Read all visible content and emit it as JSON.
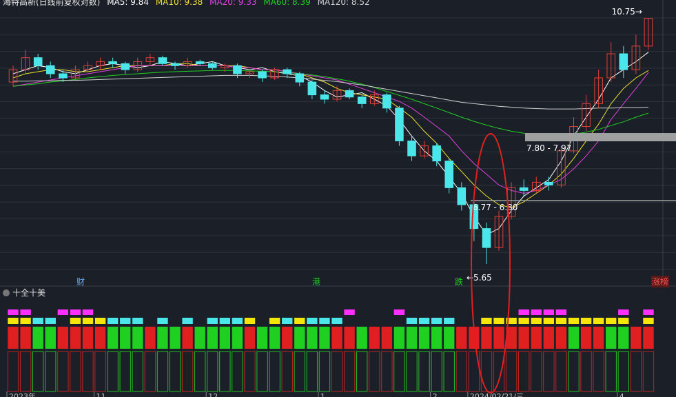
{
  "header": {
    "title": "海特高新(日线前复权对数)",
    "ma5": "MA5: 9.84",
    "ma10": "MA10: 9.38",
    "ma20": "MA20: 9.33",
    "ma60": "MA60: 8.39",
    "ma120": "MA120: 8.52"
  },
  "sub_panel": {
    "title": "十全十美"
  },
  "markers": {
    "cai": "财",
    "gang": "港",
    "die": "跌",
    "zhang": "涨榜"
  },
  "colors": {
    "background": "#1b2028",
    "up": "#e0403a",
    "down": "#4be6ea",
    "ma5": "#ffffff",
    "ma10": "#f0e030",
    "ma20": "#e040e0",
    "ma60": "#20d020",
    "ma120": "#d0d0d0",
    "annotation_ellipse": "#e02020"
  },
  "chart_data": {
    "type": "candlestick",
    "scale": "log",
    "ylim": [
      5.5,
      11.0
    ],
    "x_tick_labels": [
      "2023年",
      "11",
      "12",
      "1",
      "2",
      "2024/02/21/三",
      "4"
    ],
    "annotations": {
      "high": "10.75",
      "low": "5.65",
      "zone_upper": "7.80 - 7.97",
      "zone_lower": "6.77 - 6.80"
    },
    "series": [
      {
        "name": "MA5",
        "values": [
          9.3,
          9.4,
          9.5,
          9.45,
          9.35,
          9.3,
          9.4,
          9.5,
          9.55,
          9.5,
          9.45,
          9.5,
          9.6,
          9.55,
          9.5,
          9.55,
          9.6,
          9.5,
          9.45,
          9.4,
          9.45,
          9.35,
          9.3,
          9.25,
          9.1,
          8.9,
          8.75,
          8.8,
          8.85,
          8.7,
          8.55,
          8.25,
          7.9,
          7.6,
          7.4,
          7.1,
          6.8,
          6.4,
          6.1,
          6.2,
          6.5,
          6.75,
          6.9,
          7.05,
          7.4,
          7.9,
          8.3,
          8.7,
          9.2,
          9.4,
          9.6,
          9.84
        ]
      },
      {
        "name": "MA10",
        "values": [
          9.2,
          9.3,
          9.35,
          9.4,
          9.4,
          9.35,
          9.35,
          9.4,
          9.45,
          9.5,
          9.5,
          9.5,
          9.5,
          9.55,
          9.55,
          9.5,
          9.5,
          9.5,
          9.5,
          9.45,
          9.4,
          9.4,
          9.35,
          9.3,
          9.2,
          9.1,
          8.95,
          8.85,
          8.8,
          8.75,
          8.7,
          8.5,
          8.3,
          8.0,
          7.75,
          7.45,
          7.2,
          6.95,
          6.75,
          6.6,
          6.55,
          6.65,
          6.8,
          6.95,
          7.15,
          7.45,
          7.8,
          8.15,
          8.6,
          8.95,
          9.2,
          9.38
        ]
      },
      {
        "name": "MA20",
        "values": [
          9.0,
          9.05,
          9.1,
          9.15,
          9.2,
          9.25,
          9.3,
          9.35,
          9.4,
          9.45,
          9.5,
          9.5,
          9.5,
          9.5,
          9.5,
          9.5,
          9.5,
          9.5,
          9.45,
          9.45,
          9.4,
          9.4,
          9.35,
          9.3,
          9.25,
          9.2,
          9.15,
          9.05,
          8.95,
          8.85,
          8.75,
          8.65,
          8.5,
          8.3,
          8.1,
          7.9,
          7.6,
          7.35,
          7.15,
          6.95,
          6.85,
          6.8,
          6.85,
          6.95,
          7.05,
          7.25,
          7.5,
          7.8,
          8.25,
          8.6,
          8.95,
          9.33
        ]
      },
      {
        "name": "MA60",
        "values": [
          9.0,
          9.03,
          9.06,
          9.1,
          9.13,
          9.16,
          9.2,
          9.23,
          9.26,
          9.28,
          9.3,
          9.32,
          9.34,
          9.35,
          9.36,
          9.37,
          9.38,
          9.38,
          9.38,
          9.37,
          9.36,
          9.35,
          9.33,
          9.3,
          9.27,
          9.23,
          9.18,
          9.12,
          9.05,
          8.97,
          8.88,
          8.79,
          8.7,
          8.6,
          8.5,
          8.4,
          8.3,
          8.21,
          8.13,
          8.06,
          8.0,
          7.96,
          7.93,
          7.92,
          7.92,
          7.94,
          7.98,
          8.04,
          8.12,
          8.2,
          8.3,
          8.39
        ]
      },
      {
        "name": "MA120",
        "values": [
          9.12,
          9.12,
          9.13,
          9.13,
          9.14,
          9.14,
          9.15,
          9.16,
          9.17,
          9.18,
          9.19,
          9.2,
          9.21,
          9.22,
          9.23,
          9.24,
          9.25,
          9.26,
          9.26,
          9.26,
          9.25,
          9.24,
          9.22,
          9.2,
          9.17,
          9.14,
          9.11,
          9.07,
          9.03,
          8.98,
          8.93,
          8.88,
          8.83,
          8.78,
          8.73,
          8.68,
          8.63,
          8.6,
          8.57,
          8.54,
          8.52,
          8.5,
          8.49,
          8.48,
          8.48,
          8.48,
          8.49,
          8.5,
          8.5,
          8.51,
          8.51,
          8.52
        ]
      }
    ],
    "candles": [
      [
        9.1,
        9.4,
        9.0,
        9.5
      ],
      [
        9.4,
        9.7,
        9.3,
        9.9
      ],
      [
        9.7,
        9.5,
        9.4,
        9.8
      ],
      [
        9.5,
        9.3,
        9.2,
        9.6
      ],
      [
        9.3,
        9.2,
        9.1,
        9.4
      ],
      [
        9.2,
        9.4,
        9.15,
        9.5
      ],
      [
        9.4,
        9.5,
        9.35,
        9.6
      ],
      [
        9.5,
        9.6,
        9.4,
        9.7
      ],
      [
        9.6,
        9.55,
        9.45,
        9.7
      ],
      [
        9.55,
        9.4,
        9.3,
        9.6
      ],
      [
        9.4,
        9.6,
        9.35,
        9.7
      ],
      [
        9.6,
        9.7,
        9.5,
        9.8
      ],
      [
        9.7,
        9.55,
        9.5,
        9.75
      ],
      [
        9.55,
        9.5,
        9.4,
        9.6
      ],
      [
        9.5,
        9.6,
        9.45,
        9.7
      ],
      [
        9.6,
        9.55,
        9.5,
        9.65
      ],
      [
        9.55,
        9.45,
        9.4,
        9.6
      ],
      [
        9.45,
        9.5,
        9.35,
        9.55
      ],
      [
        9.5,
        9.3,
        9.2,
        9.55
      ],
      [
        9.3,
        9.35,
        9.2,
        9.4
      ],
      [
        9.35,
        9.2,
        9.1,
        9.4
      ],
      [
        9.2,
        9.4,
        9.15,
        9.45
      ],
      [
        9.4,
        9.3,
        9.2,
        9.45
      ],
      [
        9.3,
        9.1,
        9.0,
        9.35
      ],
      [
        9.1,
        8.8,
        8.7,
        9.15
      ],
      [
        8.8,
        8.7,
        8.6,
        8.9
      ],
      [
        8.7,
        8.9,
        8.65,
        9.0
      ],
      [
        8.9,
        8.75,
        8.7,
        8.95
      ],
      [
        8.75,
        8.6,
        8.5,
        8.8
      ],
      [
        8.6,
        8.8,
        8.55,
        8.9
      ],
      [
        8.8,
        8.5,
        8.4,
        8.85
      ],
      [
        8.5,
        7.8,
        7.7,
        8.55
      ],
      [
        7.8,
        7.5,
        7.4,
        7.9
      ],
      [
        7.5,
        7.7,
        7.45,
        7.8
      ],
      [
        7.7,
        7.4,
        7.3,
        7.75
      ],
      [
        7.4,
        6.9,
        6.8,
        7.45
      ],
      [
        6.9,
        6.6,
        6.5,
        7.0
      ],
      [
        6.6,
        6.2,
        6.0,
        6.7
      ],
      [
        6.2,
        5.9,
        5.65,
        6.3
      ],
      [
        5.9,
        6.4,
        5.85,
        6.5
      ],
      [
        6.4,
        6.9,
        6.35,
        7.0
      ],
      [
        6.9,
        6.85,
        6.75,
        7.05
      ],
      [
        6.85,
        7.0,
        6.8,
        7.1
      ],
      [
        7.0,
        6.95,
        6.85,
        7.1
      ],
      [
        6.95,
        7.6,
        6.9,
        7.7
      ],
      [
        7.6,
        8.1,
        7.55,
        8.3
      ],
      [
        8.1,
        8.6,
        8.0,
        8.8
      ],
      [
        8.6,
        9.2,
        8.5,
        9.4
      ],
      [
        9.2,
        9.8,
        9.1,
        10.1
      ],
      [
        9.8,
        9.4,
        9.2,
        10.0
      ],
      [
        9.4,
        10.0,
        9.3,
        10.3
      ],
      [
        10.0,
        10.75,
        9.9,
        10.75
      ]
    ],
    "sub_indicator": {
      "magenta": [
        1,
        1,
        0,
        0,
        1,
        1,
        1,
        0,
        0,
        0,
        0,
        0,
        0,
        0,
        0,
        0,
        0,
        0,
        0,
        0,
        0,
        0,
        0,
        0,
        0,
        0,
        0,
        1,
        0,
        0,
        0,
        1,
        0,
        0,
        0,
        0,
        0,
        0,
        0,
        0,
        0,
        1,
        1,
        1,
        1,
        0,
        0,
        0,
        0,
        1,
        0,
        1
      ],
      "yellow": [
        1,
        1,
        0,
        0,
        0,
        1,
        1,
        1,
        0,
        0,
        0,
        0,
        0,
        0,
        0,
        0,
        0,
        0,
        0,
        1,
        0,
        1,
        0,
        1,
        0,
        0,
        0,
        0,
        0,
        0,
        0,
        0,
        0,
        0,
        0,
        0,
        0,
        0,
        1,
        1,
        1,
        1,
        1,
        1,
        1,
        1,
        1,
        1,
        1,
        1,
        0,
        1
      ],
      "cyan": [
        0,
        0,
        1,
        1,
        0,
        0,
        0,
        0,
        1,
        1,
        1,
        0,
        1,
        0,
        1,
        0,
        1,
        1,
        1,
        0,
        0,
        0,
        1,
        0,
        1,
        1,
        1,
        0,
        0,
        0,
        0,
        0,
        1,
        1,
        1,
        1,
        0,
        0,
        0,
        0,
        0,
        0,
        0,
        0,
        0,
        0,
        0,
        0,
        0,
        0,
        0,
        0
      ],
      "redgreen": [
        1,
        1,
        0,
        0,
        1,
        1,
        1,
        1,
        0,
        0,
        0,
        1,
        0,
        0,
        1,
        0,
        0,
        0,
        0,
        1,
        0,
        0,
        1,
        0,
        0,
        0,
        1,
        1,
        0,
        1,
        1,
        0,
        0,
        0,
        0,
        0,
        1,
        1,
        1,
        1,
        1,
        1,
        1,
        1,
        1,
        0,
        1,
        1,
        0,
        0,
        1,
        1
      ]
    }
  }
}
